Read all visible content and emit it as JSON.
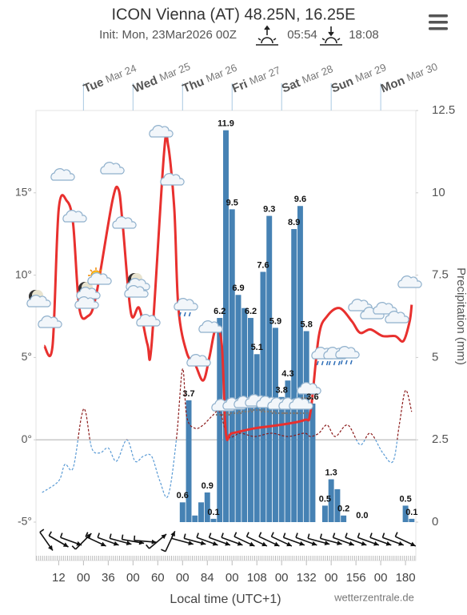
{
  "title": "ICON Vienna (AT) 48.25N, 16.25E",
  "init": "Init: Mon, 23Mar2026 00Z",
  "sunrise": "05:54",
  "sunset": "18:08",
  "chart_data": {
    "type": "meteogram",
    "xlabel": "Local time (UTC+1)",
    "y2label": "Precipitation (mm)",
    "source": "wetterzentrale.de",
    "xlim": [
      1,
      185
    ],
    "xticks": [
      12,
      {
        "value": 24,
        "label": "00"
      },
      36,
      {
        "value": 48,
        "label": "00"
      },
      60,
      {
        "value": 72,
        "label": "00"
      },
      84,
      {
        "value": 96,
        "label": "00"
      },
      108,
      {
        "value": 120,
        "label": "00"
      },
      132,
      {
        "value": 144,
        "label": "00"
      },
      156,
      {
        "value": 168,
        "label": "00"
      },
      180
    ],
    "day_labels": [
      {
        "value": 24,
        "weekday": "Tue",
        "date": "Mar 24"
      },
      {
        "value": 48,
        "weekday": "Wed",
        "date": "Mar 25"
      },
      {
        "value": 72,
        "weekday": "Thu",
        "date": "Mar 26"
      },
      {
        "value": 96,
        "weekday": "Fri",
        "date": "Mar 27"
      },
      {
        "value": 120,
        "weekday": "Sat",
        "date": "Mar 28"
      },
      {
        "value": 144,
        "weekday": "Sun",
        "date": "Mar 29"
      },
      {
        "value": 168,
        "weekday": "Mon",
        "date": "Mar 30"
      }
    ],
    "ylim": [
      -5,
      20
    ],
    "yticks": [
      {
        "value": -5,
        "label": "-5°"
      },
      {
        "value": 0,
        "label": "0°"
      },
      {
        "value": 5,
        "label": "5°"
      },
      {
        "value": 10,
        "label": "10°"
      },
      {
        "value": 15,
        "label": "15°"
      }
    ],
    "y2lim": [
      0,
      12.5
    ],
    "y2ticks": [
      0,
      2.5,
      5,
      7.5,
      10,
      12.5
    ],
    "zero_line": true,
    "temperature": {
      "color": "#e8302e",
      "x": [
        5,
        9,
        12,
        16,
        19,
        22,
        26,
        30,
        38,
        41,
        43,
        47,
        51,
        55,
        57,
        63,
        65,
        68,
        70,
        74,
        78,
        82,
        85,
        88,
        91,
        93,
        96,
        107,
        119,
        131,
        134,
        138,
        142,
        148,
        154,
        158,
        163,
        169,
        175,
        179,
        182,
        183
      ],
      "values": [
        5.7,
        5.7,
        14.0,
        14.5,
        13.1,
        8.0,
        7.5,
        8.7,
        14.5,
        15.2,
        13.1,
        7.7,
        8.0,
        5.8,
        5.8,
        17.4,
        17.9,
        14.0,
        8.0,
        5.3,
        4.6,
        3.6,
        5.0,
        6.7,
        5.8,
        0.4,
        0.4,
        0.7,
        0.9,
        1.2,
        1.7,
        6.3,
        7.5,
        8.0,
        7.2,
        6.5,
        6.7,
        6.3,
        6.3,
        6.0,
        7.2,
        8.2
      ]
    },
    "dew_point": {
      "color_above": "#8b1a1a",
      "color_below": "#5b9bd5",
      "x": [
        4,
        12,
        15,
        19,
        23,
        25,
        28,
        32,
        36,
        40,
        45,
        49,
        53,
        57,
        61,
        65,
        69,
        72,
        74,
        78,
        82,
        86,
        90,
        94,
        100,
        107,
        115,
        123,
        131,
        134,
        138,
        142,
        146,
        152,
        158,
        163,
        169,
        174,
        177,
        180,
        183
      ],
      "values": [
        -3.2,
        -2.5,
        -1.5,
        -1.7,
        1.4,
        1.7,
        -0.5,
        -0.8,
        -0.5,
        -1.3,
        0,
        -1.3,
        -1.0,
        -1.0,
        -2.5,
        -3.4,
        0,
        4.3,
        1.4,
        0.7,
        0.9,
        1.4,
        1.7,
        0.2,
        0.4,
        0.2,
        0.4,
        0.2,
        0.4,
        0.2,
        0.4,
        0.9,
        0.2,
        0.9,
        -0.3,
        0.4,
        -0.8,
        -1.3,
        0.9,
        3.0,
        1.7
      ]
    },
    "precipitation": {
      "color": "#4682b4",
      "axis": "y2",
      "x": [
        72,
        75,
        78,
        81,
        84,
        87,
        90,
        93,
        96,
        99,
        102,
        105,
        108,
        111,
        114,
        117,
        120,
        123,
        126,
        129,
        132,
        135,
        141,
        144,
        147,
        150,
        159,
        180,
        183
      ],
      "values": [
        0.6,
        3.7,
        0.2,
        0.6,
        0.9,
        0.1,
        6.2,
        11.9,
        9.5,
        6.9,
        6.5,
        6.2,
        5.1,
        7.6,
        9.3,
        5.9,
        3.8,
        4.3,
        8.9,
        9.6,
        5.8,
        3.6,
        0.5,
        1.3,
        1.0,
        0.2,
        0,
        0.5,
        0.1
      ],
      "value_labels": [
        "0.6",
        "3.7",
        null,
        null,
        "0.9",
        "0.1",
        "6.2",
        "11.9",
        "9.5",
        "6.9",
        null,
        "6.2",
        "5.1",
        "7.6",
        "9.3",
        "5.9",
        "3.8",
        "4.3",
        "8.9",
        "9.6",
        "5.8",
        "3.6",
        "0.5",
        "1.3",
        null,
        "0.2",
        "0.0",
        "0.5",
        "0.1"
      ]
    },
    "wind": {
      "x": [
        6,
        12,
        18,
        24,
        30,
        36,
        42,
        48,
        54,
        60,
        66,
        72,
        78,
        84,
        90,
        96,
        102,
        108,
        114,
        120,
        126,
        132,
        138,
        144,
        150,
        156,
        162,
        168,
        174,
        180
      ],
      "direction": [
        55,
        30,
        20,
        -45,
        25,
        20,
        15,
        10,
        5,
        -40,
        -65,
        15,
        15,
        20,
        20,
        20,
        25,
        25,
        25,
        25,
        20,
        20,
        15,
        15,
        20,
        20,
        20,
        20,
        20,
        25
      ]
    }
  }
}
